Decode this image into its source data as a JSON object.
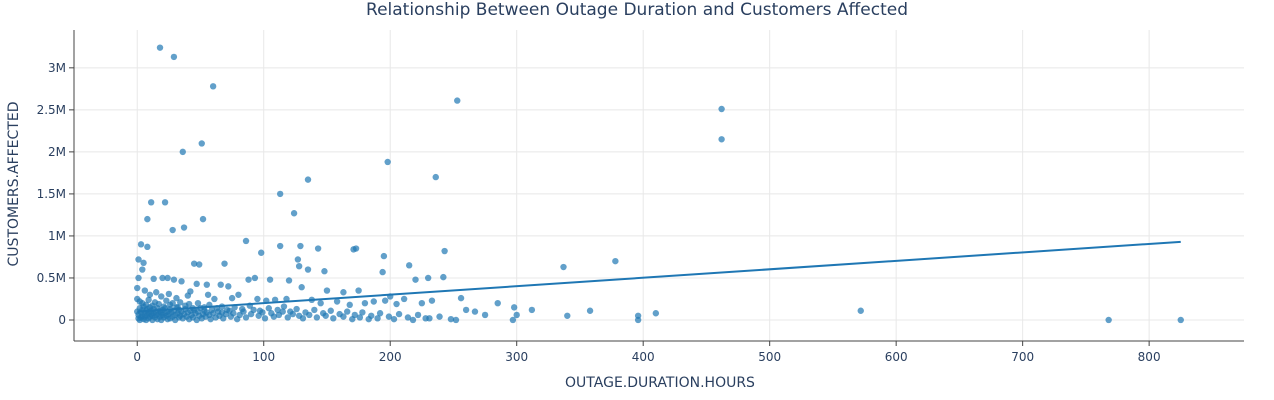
{
  "chart_data": {
    "type": "scatter",
    "title": "Relationship Between Outage Duration and Customers Affected",
    "xlabel": "OUTAGE.DURATION.HOURS",
    "ylabel": "CUSTOMERS.AFFECTED",
    "xlim": [
      -50,
      875
    ],
    "ylim": [
      -250000,
      3450000
    ],
    "x_ticks": [
      0,
      100,
      200,
      300,
      400,
      500,
      600,
      700,
      800
    ],
    "y_ticks": [
      {
        "value": 0,
        "label": "0"
      },
      {
        "value": 500000,
        "label": "0.5M"
      },
      {
        "value": 1000000,
        "label": "1M"
      },
      {
        "value": 1500000,
        "label": "1.5M"
      },
      {
        "value": 2000000,
        "label": "2M"
      },
      {
        "value": 2500000,
        "label": "2.5M"
      },
      {
        "value": 3000000,
        "label": "3M"
      }
    ],
    "grid": true,
    "marker_color": "#1f77b4",
    "trendline": {
      "x": [
        0,
        825
      ],
      "y": [
        100000,
        930000
      ]
    },
    "points": [
      [
        18,
        3240000
      ],
      [
        29,
        3130000
      ],
      [
        60,
        2780000
      ],
      [
        253,
        2610000
      ],
      [
        462,
        2510000
      ],
      [
        462,
        2150000
      ],
      [
        51,
        2100000
      ],
      [
        36,
        2000000
      ],
      [
        198,
        1880000
      ],
      [
        135,
        1670000
      ],
      [
        236,
        1700000
      ],
      [
        113,
        1500000
      ],
      [
        11,
        1400000
      ],
      [
        22,
        1400000
      ],
      [
        124,
        1270000
      ],
      [
        8,
        1200000
      ],
      [
        52,
        1200000
      ],
      [
        37,
        1100000
      ],
      [
        28,
        1070000
      ],
      [
        86,
        940000
      ],
      [
        3,
        900000
      ],
      [
        8,
        870000
      ],
      [
        113,
        880000
      ],
      [
        129,
        880000
      ],
      [
        143,
        850000
      ],
      [
        173,
        850000
      ],
      [
        171,
        840000
      ],
      [
        243,
        820000
      ],
      [
        98,
        800000
      ],
      [
        195,
        760000
      ],
      [
        127,
        720000
      ],
      [
        1,
        720000
      ],
      [
        5,
        680000
      ],
      [
        45,
        670000
      ],
      [
        49,
        660000
      ],
      [
        69,
        670000
      ],
      [
        215,
        650000
      ],
      [
        128,
        640000
      ],
      [
        337,
        630000
      ],
      [
        378,
        700000
      ],
      [
        4,
        600000
      ],
      [
        194,
        570000
      ],
      [
        135,
        600000
      ],
      [
        148,
        580000
      ],
      [
        1,
        500000
      ],
      [
        13,
        490000
      ],
      [
        20,
        500000
      ],
      [
        24,
        500000
      ],
      [
        29,
        480000
      ],
      [
        35,
        460000
      ],
      [
        47,
        430000
      ],
      [
        55,
        420000
      ],
      [
        66,
        420000
      ],
      [
        72,
        400000
      ],
      [
        88,
        480000
      ],
      [
        93,
        500000
      ],
      [
        105,
        480000
      ],
      [
        120,
        470000
      ],
      [
        130,
        390000
      ],
      [
        150,
        350000
      ],
      [
        163,
        330000
      ],
      [
        175,
        350000
      ],
      [
        200,
        280000
      ],
      [
        220,
        480000
      ],
      [
        230,
        500000
      ],
      [
        242,
        510000
      ],
      [
        0,
        380000
      ],
      [
        6,
        350000
      ],
      [
        10,
        300000
      ],
      [
        15,
        330000
      ],
      [
        19,
        280000
      ],
      [
        25,
        310000
      ],
      [
        31,
        260000
      ],
      [
        40,
        290000
      ],
      [
        42,
        340000
      ],
      [
        56,
        300000
      ],
      [
        61,
        250000
      ],
      [
        75,
        260000
      ],
      [
        80,
        300000
      ],
      [
        95,
        250000
      ],
      [
        102,
        230000
      ],
      [
        109,
        240000
      ],
      [
        118,
        250000
      ],
      [
        138,
        240000
      ],
      [
        145,
        200000
      ],
      [
        158,
        220000
      ],
      [
        168,
        180000
      ],
      [
        180,
        200000
      ],
      [
        187,
        220000
      ],
      [
        196,
        230000
      ],
      [
        205,
        190000
      ],
      [
        211,
        250000
      ],
      [
        225,
        200000
      ],
      [
        233,
        230000
      ],
      [
        256,
        260000
      ],
      [
        285,
        200000
      ],
      [
        298,
        150000
      ],
      [
        260,
        120000
      ],
      [
        312,
        120000
      ],
      [
        358,
        110000
      ],
      [
        410,
        80000
      ],
      [
        572,
        110000
      ],
      [
        0,
        250000
      ],
      [
        2,
        220000
      ],
      [
        4,
        200000
      ],
      [
        7,
        180000
      ],
      [
        9,
        240000
      ],
      [
        12,
        170000
      ],
      [
        14,
        210000
      ],
      [
        17,
        190000
      ],
      [
        21,
        160000
      ],
      [
        23,
        230000
      ],
      [
        26,
        180000
      ],
      [
        28,
        200000
      ],
      [
        32,
        150000
      ],
      [
        34,
        210000
      ],
      [
        38,
        170000
      ],
      [
        41,
        190000
      ],
      [
        44,
        140000
      ],
      [
        48,
        200000
      ],
      [
        53,
        150000
      ],
      [
        57,
        180000
      ],
      [
        63,
        140000
      ],
      [
        67,
        160000
      ],
      [
        71,
        120000
      ],
      [
        77,
        150000
      ],
      [
        83,
        130000
      ],
      [
        89,
        170000
      ],
      [
        97,
        110000
      ],
      [
        104,
        140000
      ],
      [
        111,
        120000
      ],
      [
        116,
        160000
      ],
      [
        121,
        100000
      ],
      [
        126,
        130000
      ],
      [
        133,
        90000
      ],
      [
        140,
        120000
      ],
      [
        147,
        80000
      ],
      [
        153,
        110000
      ],
      [
        160,
        70000
      ],
      [
        166,
        100000
      ],
      [
        172,
        60000
      ],
      [
        178,
        90000
      ],
      [
        185,
        50000
      ],
      [
        192,
        80000
      ],
      [
        199,
        40000
      ],
      [
        207,
        70000
      ],
      [
        214,
        30000
      ],
      [
        222,
        60000
      ],
      [
        231,
        20000
      ],
      [
        239,
        40000
      ],
      [
        248,
        10000
      ],
      [
        267,
        100000
      ],
      [
        275,
        60000
      ],
      [
        300,
        60000
      ],
      [
        340,
        50000
      ],
      [
        396,
        50000
      ],
      [
        396,
        0
      ],
      [
        297,
        0
      ],
      [
        252,
        0
      ],
      [
        768,
        0
      ],
      [
        825,
        0
      ],
      [
        0,
        100000
      ],
      [
        1,
        60000
      ],
      [
        1,
        20000
      ],
      [
        2,
        140000
      ],
      [
        2,
        0
      ],
      [
        3,
        90000
      ],
      [
        3,
        30000
      ],
      [
        4,
        120000
      ],
      [
        4,
        50000
      ],
      [
        5,
        160000
      ],
      [
        5,
        10000
      ],
      [
        6,
        80000
      ],
      [
        6,
        40000
      ],
      [
        7,
        110000
      ],
      [
        7,
        0
      ],
      [
        8,
        130000
      ],
      [
        8,
        60000
      ],
      [
        9,
        20000
      ],
      [
        9,
        90000
      ],
      [
        10,
        150000
      ],
      [
        10,
        40000
      ],
      [
        11,
        70000
      ],
      [
        11,
        110000
      ],
      [
        12,
        0
      ],
      [
        12,
        50000
      ],
      [
        13,
        130000
      ],
      [
        13,
        80000
      ],
      [
        14,
        30000
      ],
      [
        15,
        100000
      ],
      [
        15,
        60000
      ],
      [
        16,
        10000
      ],
      [
        16,
        140000
      ],
      [
        17,
        70000
      ],
      [
        18,
        40000
      ],
      [
        18,
        110000
      ],
      [
        19,
        90000
      ],
      [
        19,
        0
      ],
      [
        20,
        60000
      ],
      [
        20,
        120000
      ],
      [
        21,
        30000
      ],
      [
        22,
        80000
      ],
      [
        22,
        140000
      ],
      [
        23,
        50000
      ],
      [
        24,
        10000
      ],
      [
        24,
        100000
      ],
      [
        25,
        70000
      ],
      [
        26,
        130000
      ],
      [
        26,
        20000
      ],
      [
        27,
        90000
      ],
      [
        28,
        40000
      ],
      [
        29,
        110000
      ],
      [
        30,
        60000
      ],
      [
        30,
        0
      ],
      [
        31,
        150000
      ],
      [
        32,
        80000
      ],
      [
        33,
        30000
      ],
      [
        33,
        120000
      ],
      [
        34,
        50000
      ],
      [
        35,
        100000
      ],
      [
        36,
        20000
      ],
      [
        37,
        70000
      ],
      [
        38,
        130000
      ],
      [
        39,
        40000
      ],
      [
        40,
        90000
      ],
      [
        41,
        10000
      ],
      [
        42,
        110000
      ],
      [
        43,
        60000
      ],
      [
        44,
        30000
      ],
      [
        45,
        120000
      ],
      [
        46,
        80000
      ],
      [
        47,
        0
      ],
      [
        48,
        100000
      ],
      [
        49,
        50000
      ],
      [
        50,
        140000
      ],
      [
        51,
        20000
      ],
      [
        52,
        70000
      ],
      [
        53,
        110000
      ],
      [
        54,
        40000
      ],
      [
        55,
        90000
      ],
      [
        57,
        60000
      ],
      [
        58,
        10000
      ],
      [
        59,
        120000
      ],
      [
        60,
        80000
      ],
      [
        62,
        30000
      ],
      [
        64,
        100000
      ],
      [
        65,
        50000
      ],
      [
        67,
        90000
      ],
      [
        68,
        20000
      ],
      [
        70,
        70000
      ],
      [
        73,
        110000
      ],
      [
        74,
        40000
      ],
      [
        76,
        80000
      ],
      [
        79,
        10000
      ],
      [
        81,
        60000
      ],
      [
        84,
        100000
      ],
      [
        86,
        30000
      ],
      [
        90,
        70000
      ],
      [
        92,
        120000
      ],
      [
        96,
        50000
      ],
      [
        99,
        90000
      ],
      [
        101,
        20000
      ],
      [
        106,
        80000
      ],
      [
        108,
        40000
      ],
      [
        112,
        60000
      ],
      [
        115,
        100000
      ],
      [
        119,
        30000
      ],
      [
        123,
        70000
      ],
      [
        128,
        50000
      ],
      [
        131,
        20000
      ],
      [
        136,
        60000
      ],
      [
        142,
        30000
      ],
      [
        149,
        50000
      ],
      [
        155,
        20000
      ],
      [
        163,
        40000
      ],
      [
        170,
        10000
      ],
      [
        176,
        30000
      ],
      [
        183,
        10000
      ],
      [
        190,
        20000
      ],
      [
        203,
        10000
      ],
      [
        218,
        0
      ],
      [
        228,
        20000
      ]
    ]
  }
}
